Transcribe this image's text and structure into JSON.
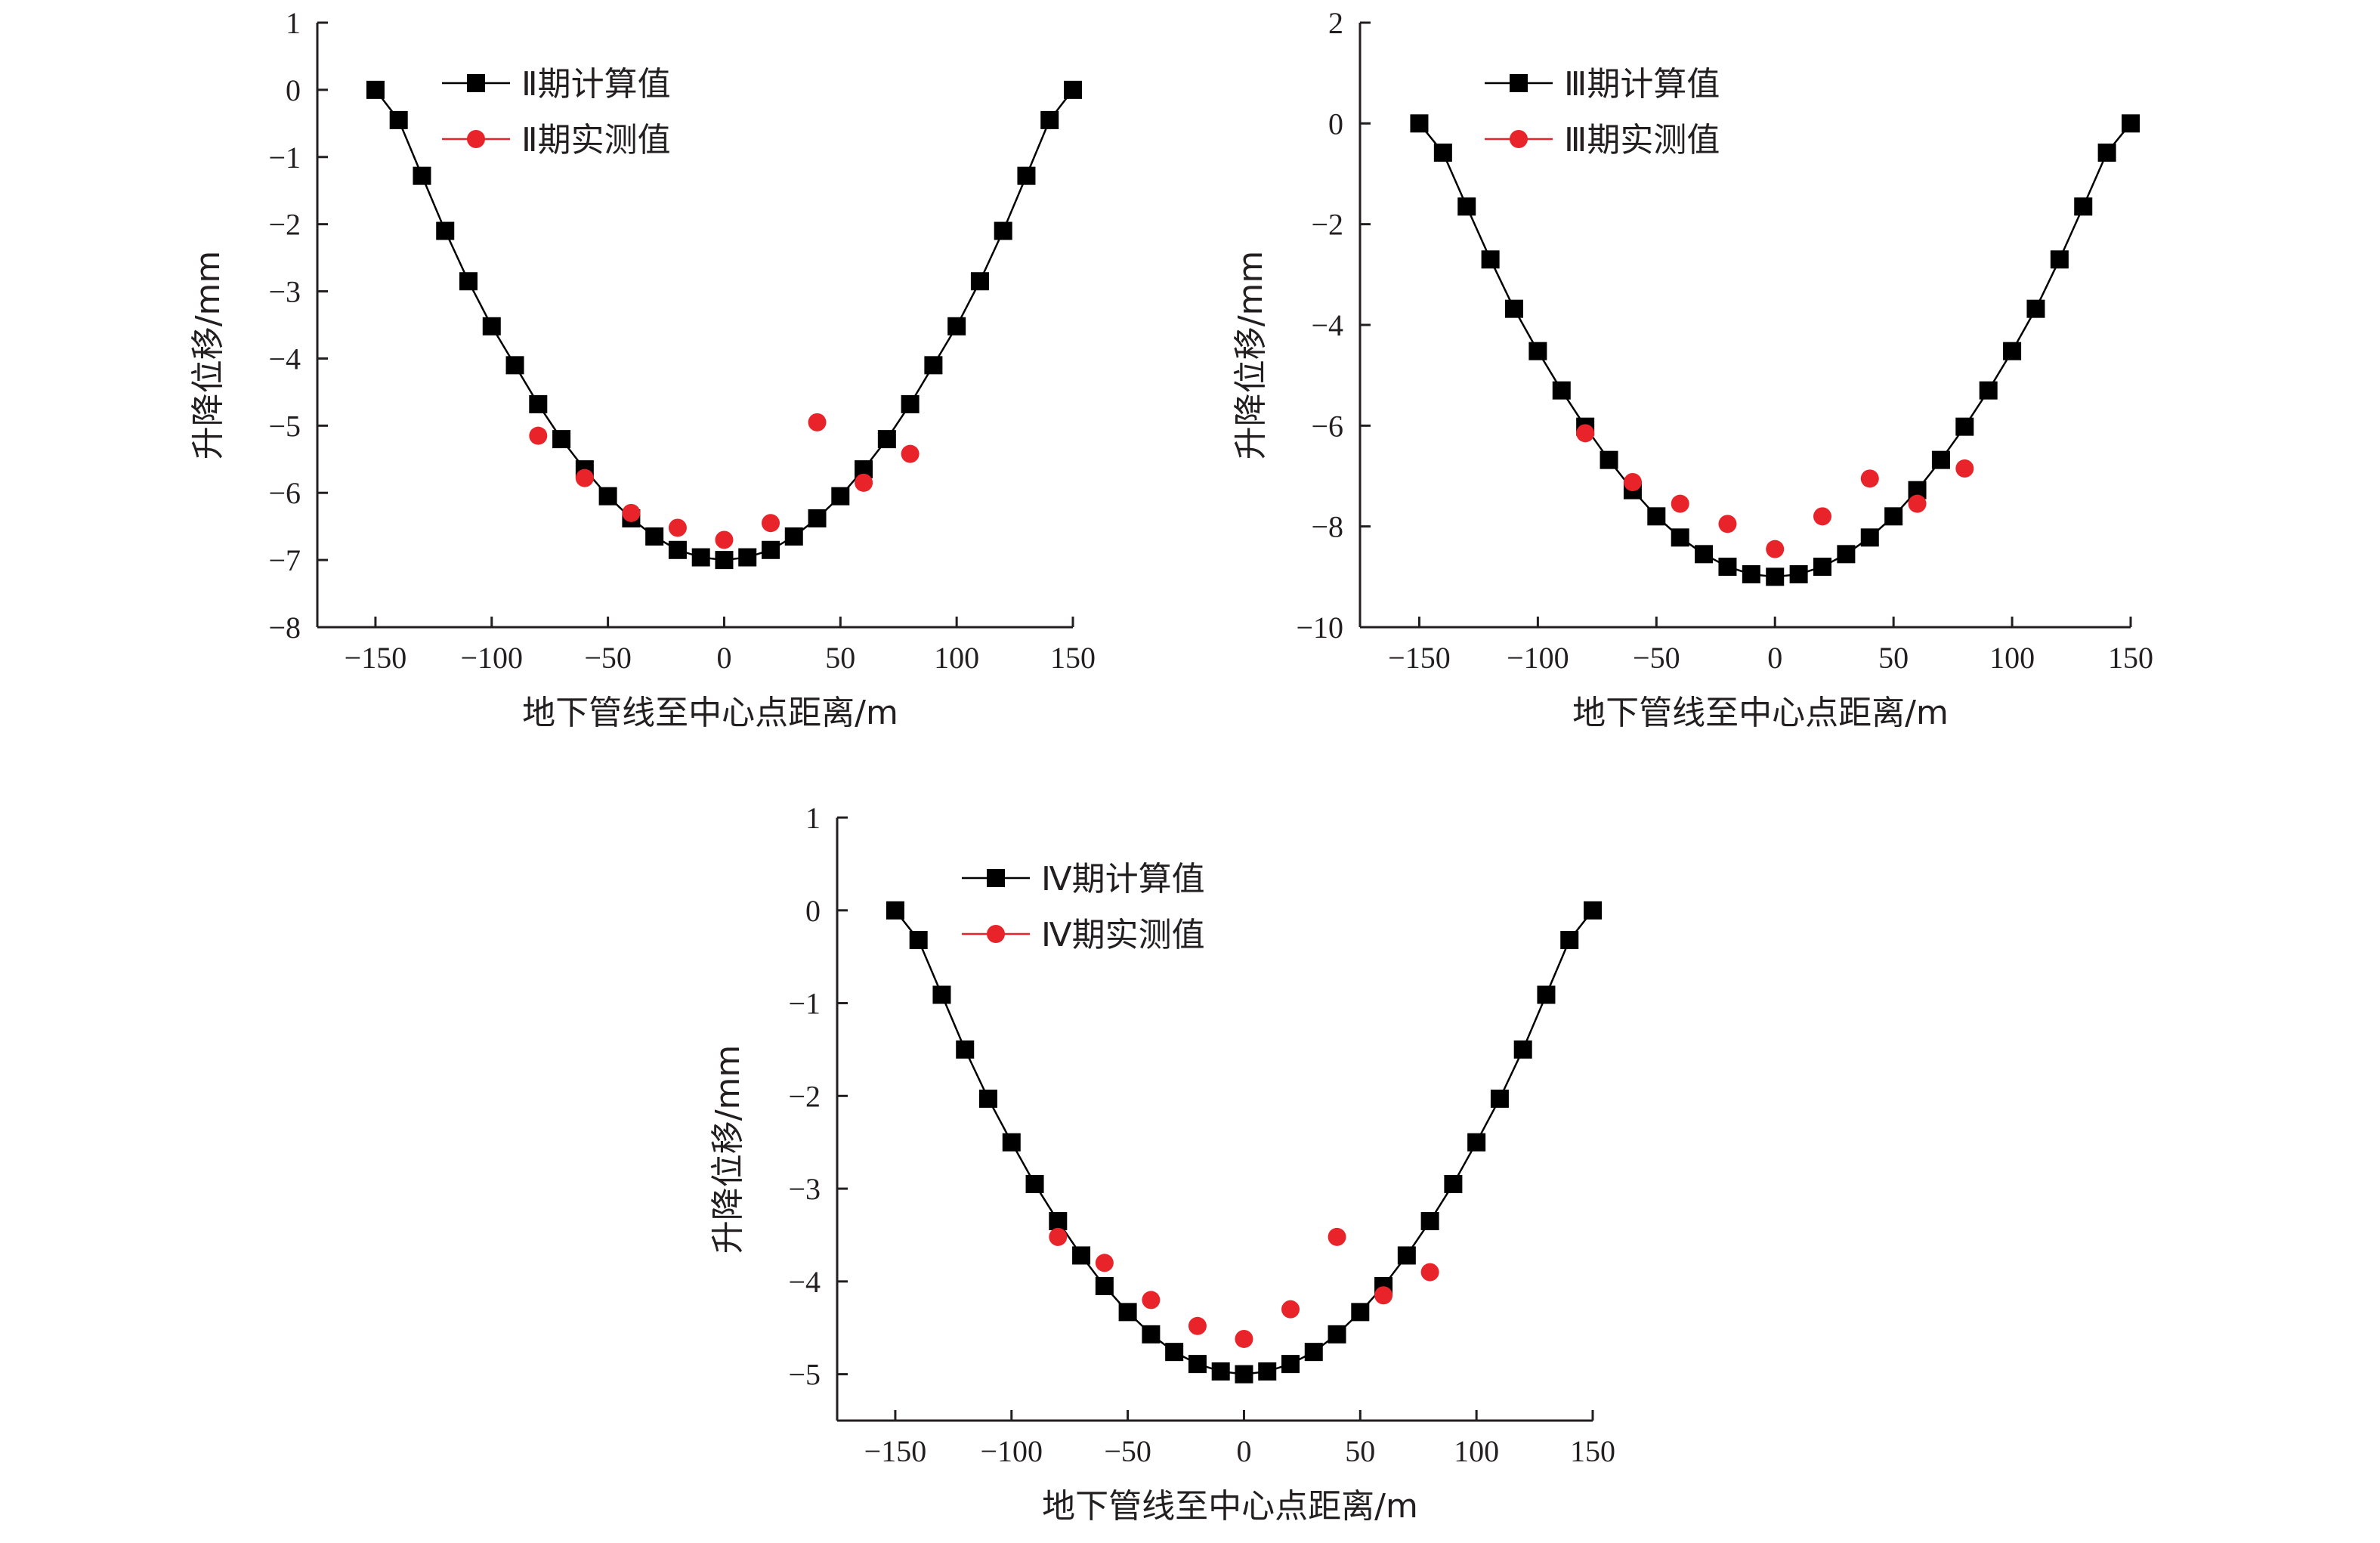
{
  "chart_data": [
    {
      "type": "scatter",
      "xlabel": "地下管线至中心点距离/m",
      "ylabel": "升降位移/mm",
      "xlim": [
        -175,
        150
      ],
      "ylim": [
        -8,
        1
      ],
      "xticks": [
        -150,
        -100,
        -50,
        0,
        50,
        100,
        150
      ],
      "yticks": [
        1,
        0,
        -1,
        -2,
        -3,
        -4,
        -5,
        -6,
        -7,
        -8
      ],
      "grid": false,
      "legend_position": "top-left",
      "series": [
        {
          "name": "Ⅱ期计算值",
          "style": "line-square",
          "color": "#000000",
          "x": [
            -150,
            -140,
            -130,
            -120,
            -110,
            -100,
            -90,
            -80,
            -70,
            -60,
            -50,
            -40,
            -30,
            -20,
            -10,
            0,
            10,
            20,
            30,
            40,
            50,
            60,
            70,
            80,
            90,
            100,
            110,
            120,
            130,
            140,
            150
          ],
          "y": [
            0,
            -0.45,
            -1.28,
            -2.1,
            -2.85,
            -3.52,
            -4.1,
            -4.68,
            -5.2,
            -5.65,
            -6.05,
            -6.38,
            -6.65,
            -6.85,
            -6.96,
            -7.0,
            -6.96,
            -6.85,
            -6.65,
            -6.38,
            -6.05,
            -5.65,
            -5.2,
            -4.68,
            -4.1,
            -3.52,
            -2.85,
            -2.1,
            -1.28,
            -0.45,
            0
          ]
        },
        {
          "name": "Ⅱ期实测值",
          "style": "dot",
          "color": "#e8232a",
          "x": [
            -80,
            -60,
            -40,
            -20,
            0,
            20,
            40,
            60,
            80
          ],
          "y": [
            -5.15,
            -5.78,
            -6.3,
            -6.52,
            -6.7,
            -6.45,
            -4.95,
            -5.85,
            -5.42
          ]
        }
      ]
    },
    {
      "type": "scatter",
      "xlabel": "地下管线至中心点距离/m",
      "ylabel": "升降位移/mm",
      "xlim": [
        -175,
        150
      ],
      "ylim": [
        -10,
        2
      ],
      "xticks": [
        -150,
        -100,
        -50,
        0,
        50,
        100,
        150
      ],
      "yticks": [
        2,
        0,
        -2,
        -4,
        -6,
        -8,
        -10
      ],
      "grid": false,
      "legend_position": "top-left",
      "series": [
        {
          "name": "Ⅲ期计算值",
          "style": "line-square",
          "color": "#000000",
          "x": [
            -150,
            -140,
            -130,
            -120,
            -110,
            -100,
            -90,
            -80,
            -70,
            -60,
            -50,
            -40,
            -30,
            -20,
            -10,
            0,
            10,
            20,
            30,
            40,
            50,
            60,
            70,
            80,
            90,
            100,
            110,
            120,
            130,
            140,
            150
          ],
          "y": [
            0,
            -0.58,
            -1.65,
            -2.7,
            -3.68,
            -4.52,
            -5.3,
            -6.02,
            -6.68,
            -7.28,
            -7.8,
            -8.22,
            -8.55,
            -8.8,
            -8.95,
            -9.0,
            -8.95,
            -8.8,
            -8.55,
            -8.22,
            -7.8,
            -7.28,
            -6.68,
            -6.02,
            -5.3,
            -4.52,
            -3.68,
            -2.7,
            -1.65,
            -0.58,
            0
          ]
        },
        {
          "name": "Ⅲ期实测值",
          "style": "dot",
          "color": "#e8232a",
          "x": [
            -80,
            -60,
            -40,
            -20,
            0,
            20,
            40,
            60,
            80
          ],
          "y": [
            -6.15,
            -7.12,
            -7.55,
            -7.95,
            -8.45,
            -7.8,
            -7.05,
            -7.55,
            -6.85
          ]
        }
      ]
    },
    {
      "type": "scatter",
      "xlabel": "地下管线至中心点距离/m",
      "ylabel": "升降位移/mm",
      "xlim": [
        -175,
        150
      ],
      "ylim": [
        -5.5,
        1
      ],
      "xticks": [
        -150,
        -100,
        -50,
        0,
        50,
        100,
        150
      ],
      "yticks": [
        1,
        0,
        -1,
        -2,
        -3,
        -4,
        -5
      ],
      "grid": false,
      "legend_position": "top-left",
      "series": [
        {
          "name": "Ⅳ期计算值",
          "style": "line-square",
          "color": "#000000",
          "x": [
            -150,
            -140,
            -130,
            -120,
            -110,
            -100,
            -90,
            -80,
            -70,
            -60,
            -50,
            -40,
            -30,
            -20,
            -10,
            0,
            10,
            20,
            30,
            40,
            50,
            60,
            70,
            80,
            90,
            100,
            110,
            120,
            130,
            140,
            150
          ],
          "y": [
            0,
            -0.32,
            -0.91,
            -1.5,
            -2.03,
            -2.5,
            -2.95,
            -3.35,
            -3.72,
            -4.05,
            -4.33,
            -4.57,
            -4.76,
            -4.89,
            -4.97,
            -5.0,
            -4.97,
            -4.89,
            -4.76,
            -4.57,
            -4.33,
            -4.05,
            -3.72,
            -3.35,
            -2.95,
            -2.5,
            -2.03,
            -1.5,
            -0.91,
            -0.32,
            0
          ]
        },
        {
          "name": "Ⅳ期实测值",
          "style": "dot",
          "color": "#e8232a",
          "x": [
            -80,
            -60,
            -40,
            -20,
            0,
            20,
            40,
            60,
            80
          ],
          "y": [
            -3.52,
            -3.8,
            -4.2,
            -4.48,
            -4.62,
            -4.3,
            -3.52,
            -4.15,
            -3.9
          ]
        }
      ]
    }
  ]
}
